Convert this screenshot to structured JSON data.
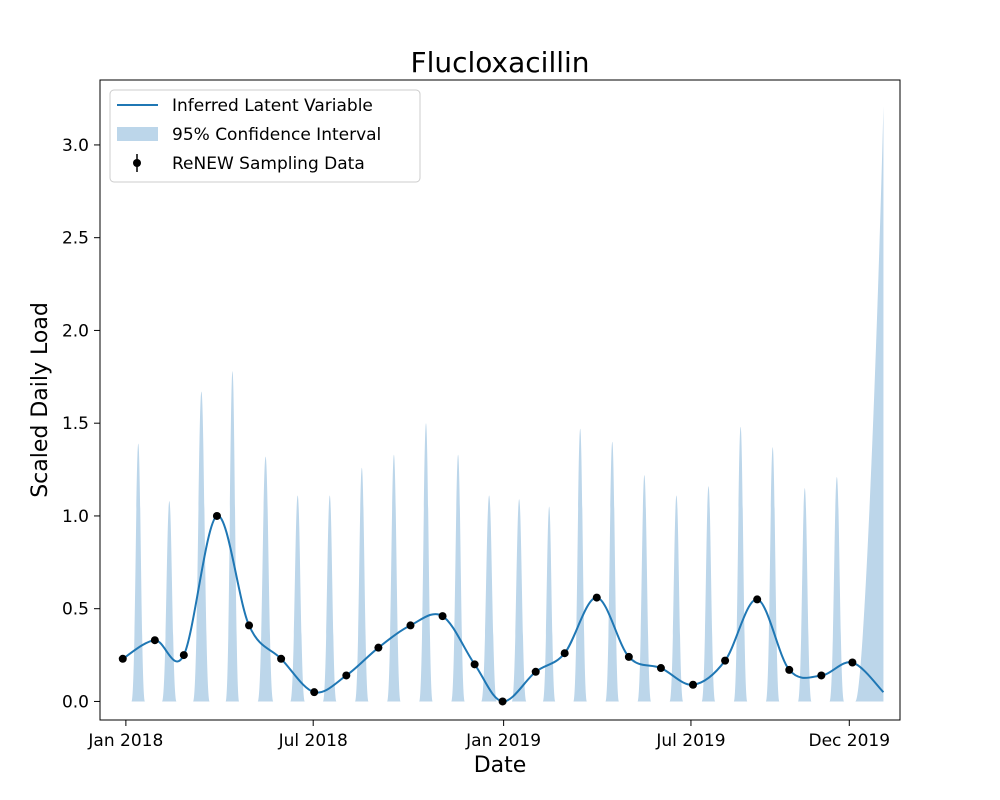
{
  "chart_data": {
    "type": "line",
    "title": "Flucloxacillin",
    "xlabel": "Date",
    "ylabel": "Scaled Daily Load",
    "ylim": [
      -0.1,
      3.35
    ],
    "xlim": [
      "2017-12-07",
      "2020-01-19"
    ],
    "x_ticks": [
      {
        "date": "2018-01-01",
        "label": "Jan 2018"
      },
      {
        "date": "2018-07-01",
        "label": "Jul 2018"
      },
      {
        "date": "2019-01-01",
        "label": "Jan 2019"
      },
      {
        "date": "2019-07-01",
        "label": "Jul 2019"
      },
      {
        "date": "2019-12-01",
        "label": "Dec 2019"
      }
    ],
    "y_ticks": [
      {
        "value": 0.0,
        "label": "0.0"
      },
      {
        "value": 0.5,
        "label": "0.5"
      },
      {
        "value": 1.0,
        "label": "1.0"
      },
      {
        "value": 1.5,
        "label": "1.5"
      },
      {
        "value": 2.0,
        "label": "2.0"
      },
      {
        "value": 2.5,
        "label": "2.5"
      },
      {
        "value": 3.0,
        "label": "3.0"
      }
    ],
    "legend": {
      "placement": "upper-left",
      "entries": [
        "Inferred Latent Variable",
        "95% Confidence Interval",
        "ReNEW Sampling Data"
      ]
    },
    "colors": {
      "line": "#1f77b4",
      "band": "#bcd6ea",
      "points": "#000000"
    },
    "sampling_data": [
      {
        "date": "2017-12-29",
        "value": 0.23
      },
      {
        "date": "2018-01-29",
        "value": 0.33
      },
      {
        "date": "2018-02-26",
        "value": 0.25
      },
      {
        "date": "2018-03-30",
        "value": 1.0
      },
      {
        "date": "2018-04-30",
        "value": 0.41
      },
      {
        "date": "2018-05-31",
        "value": 0.23
      },
      {
        "date": "2018-07-02",
        "value": 0.05
      },
      {
        "date": "2018-08-02",
        "value": 0.14
      },
      {
        "date": "2018-09-02",
        "value": 0.29
      },
      {
        "date": "2018-10-03",
        "value": 0.41
      },
      {
        "date": "2018-11-03",
        "value": 0.46
      },
      {
        "date": "2018-12-04",
        "value": 0.2
      },
      {
        "date": "2018-12-31",
        "value": 0.0
      },
      {
        "date": "2019-02-01",
        "value": 0.16
      },
      {
        "date": "2019-03-01",
        "value": 0.26
      },
      {
        "date": "2019-04-01",
        "value": 0.56
      },
      {
        "date": "2019-05-02",
        "value": 0.24
      },
      {
        "date": "2019-06-02",
        "value": 0.18
      },
      {
        "date": "2019-07-03",
        "value": 0.09
      },
      {
        "date": "2019-08-03",
        "value": 0.22
      },
      {
        "date": "2019-09-03",
        "value": 0.55
      },
      {
        "date": "2019-10-04",
        "value": 0.17
      },
      {
        "date": "2019-11-04",
        "value": 0.14
      },
      {
        "date": "2019-12-04",
        "value": 0.21
      }
    ],
    "latent_end": {
      "date": "2020-01-03",
      "value": 0.05
    },
    "confidence_interval_peaks": [
      {
        "date": "2018-01-13",
        "value": 1.39
      },
      {
        "date": "2018-02-12",
        "value": 1.08
      },
      {
        "date": "2018-03-15",
        "value": 1.67
      },
      {
        "date": "2018-04-14",
        "value": 1.78
      },
      {
        "date": "2018-05-16",
        "value": 1.32
      },
      {
        "date": "2018-06-16",
        "value": 1.11
      },
      {
        "date": "2018-07-17",
        "value": 1.11
      },
      {
        "date": "2018-08-17",
        "value": 1.26
      },
      {
        "date": "2018-09-17",
        "value": 1.33
      },
      {
        "date": "2018-10-18",
        "value": 1.5
      },
      {
        "date": "2018-11-18",
        "value": 1.33
      },
      {
        "date": "2018-12-18",
        "value": 1.11
      },
      {
        "date": "2019-01-16",
        "value": 1.09
      },
      {
        "date": "2019-02-14",
        "value": 1.05
      },
      {
        "date": "2019-03-16",
        "value": 1.47
      },
      {
        "date": "2019-04-16",
        "value": 1.4
      },
      {
        "date": "2019-05-17",
        "value": 1.22
      },
      {
        "date": "2019-06-17",
        "value": 1.11
      },
      {
        "date": "2019-07-18",
        "value": 1.16
      },
      {
        "date": "2019-08-18",
        "value": 1.48
      },
      {
        "date": "2019-09-18",
        "value": 1.37
      },
      {
        "date": "2019-10-19",
        "value": 1.15
      },
      {
        "date": "2019-11-19",
        "value": 1.21
      }
    ],
    "confidence_interval_end": {
      "date": "2020-01-03",
      "value": 3.21
    }
  }
}
